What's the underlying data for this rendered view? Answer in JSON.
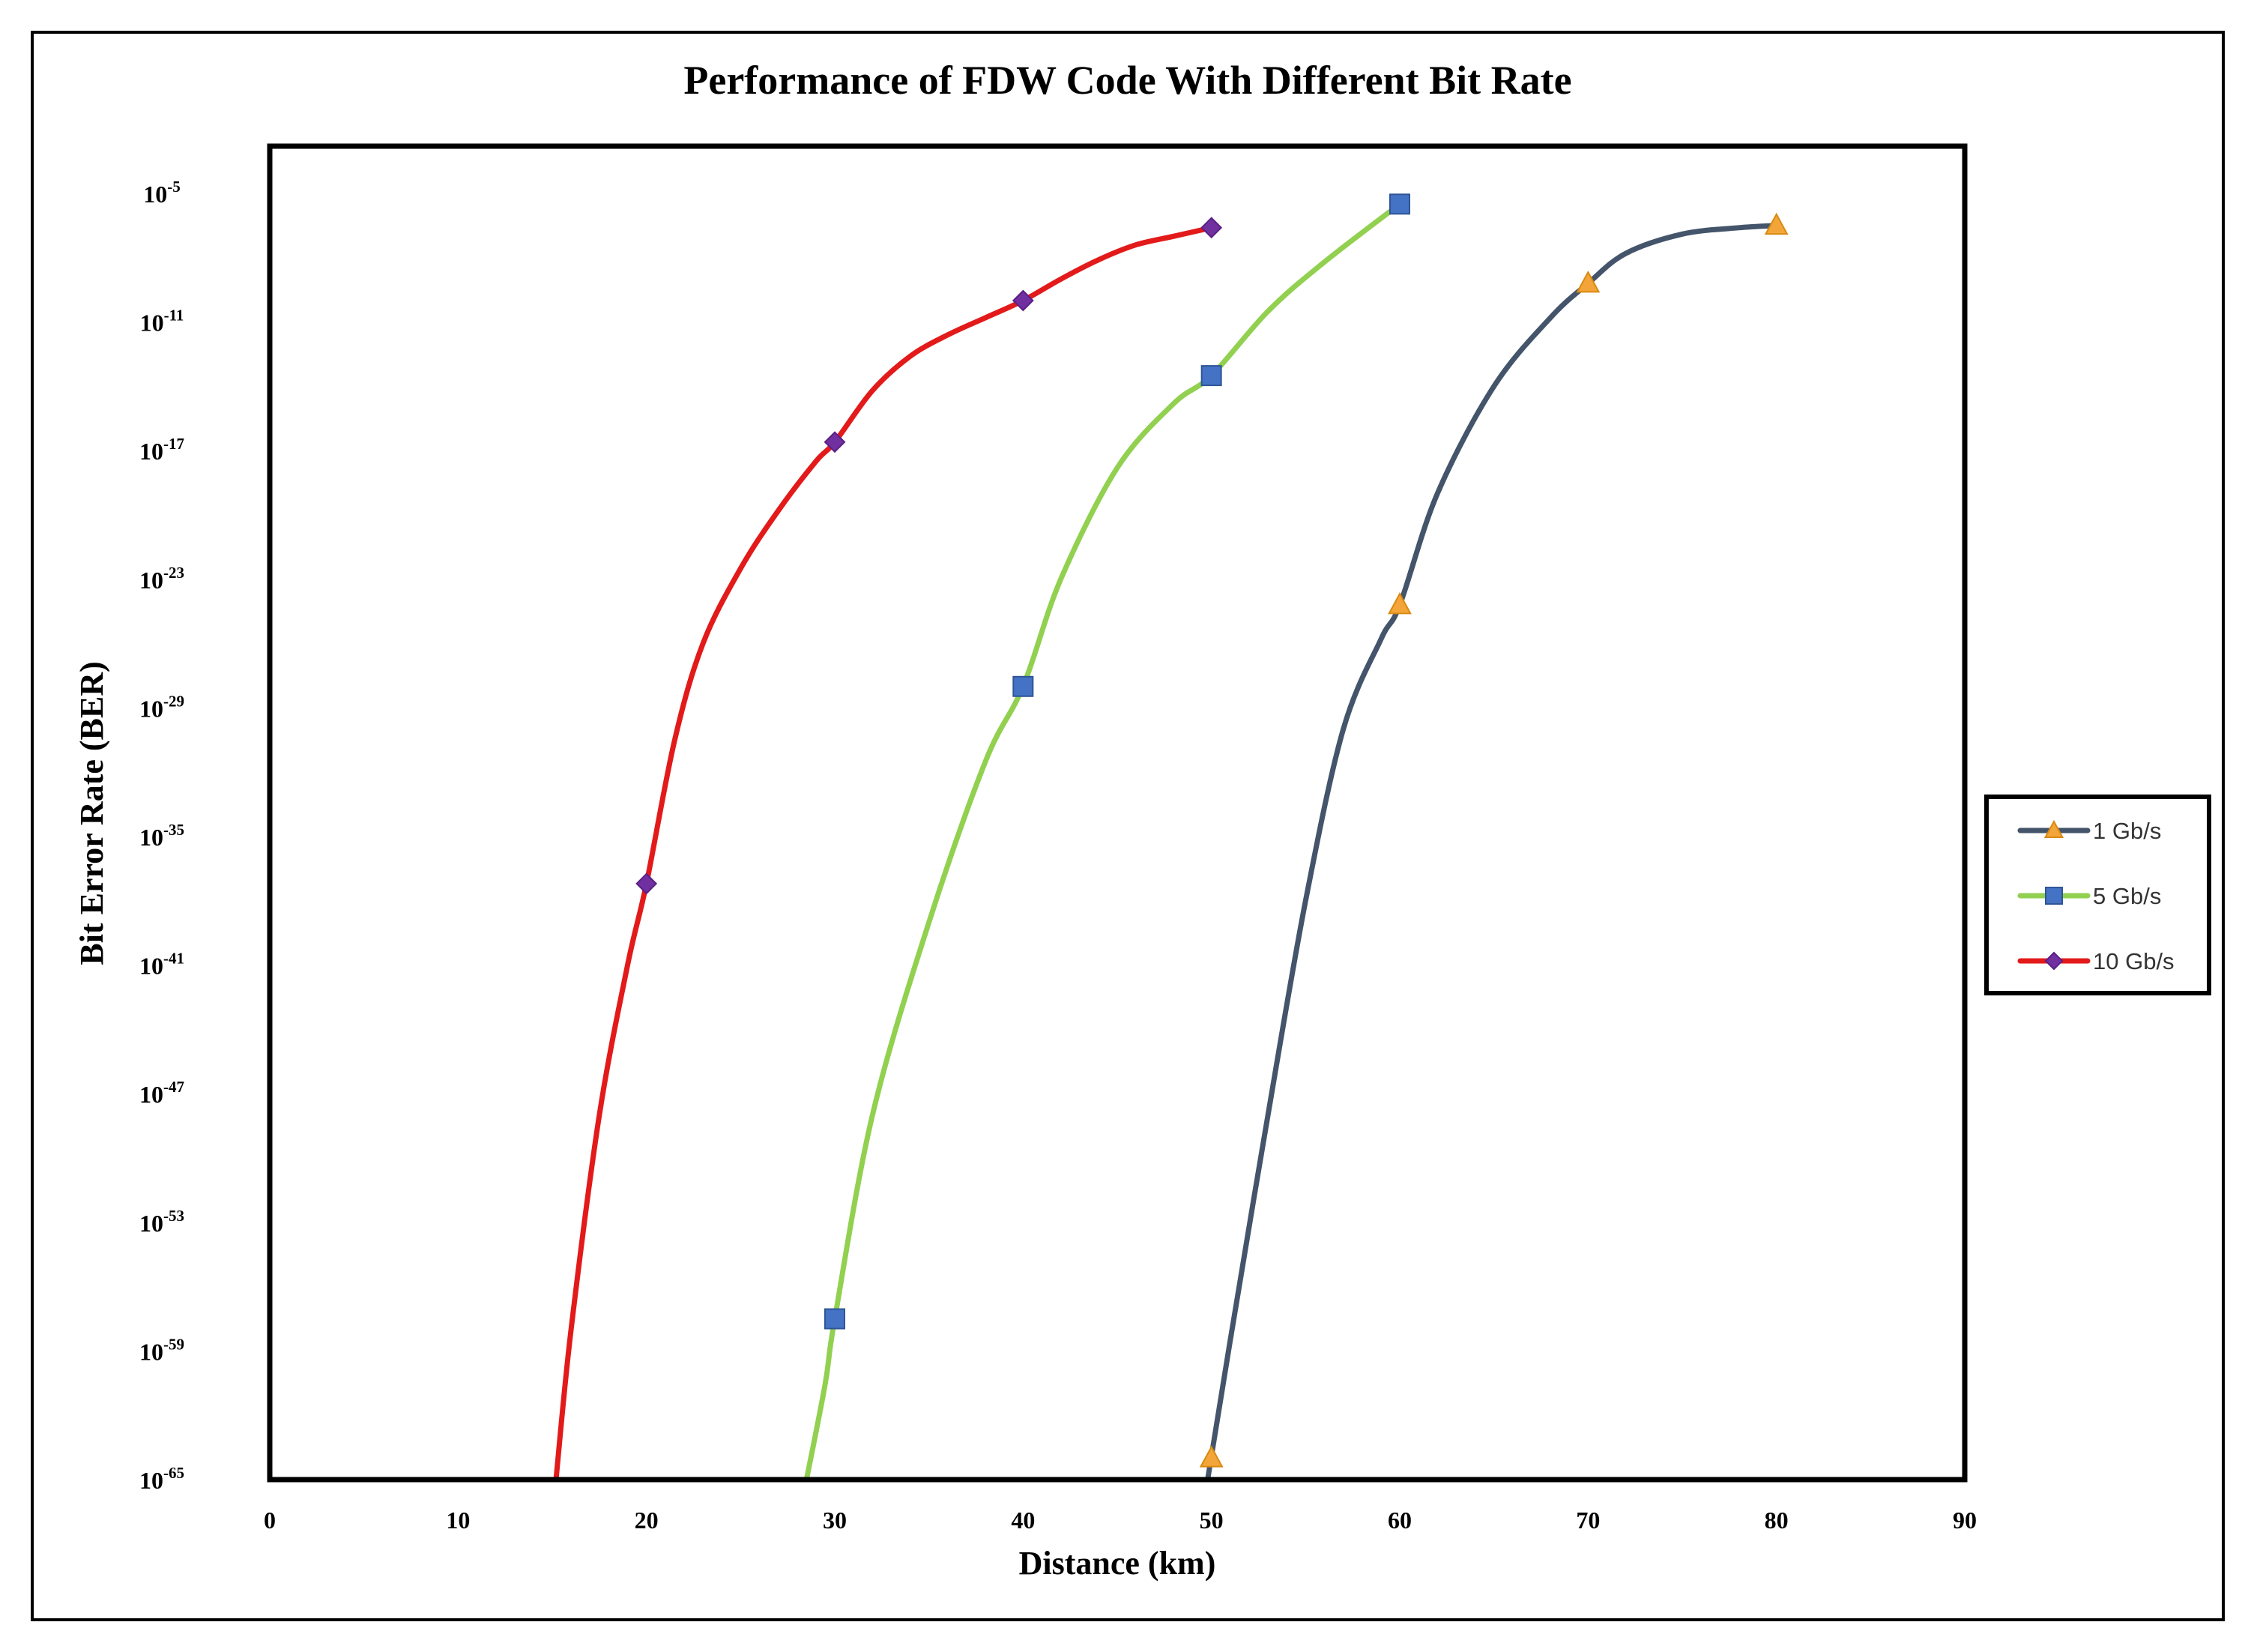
{
  "chart_data": {
    "type": "line",
    "title": "Performance of FDW Code With Different Bit Rate",
    "xlabel": "Distance (km)",
    "ylabel": "Bit Error Rate (BER)",
    "xlim": [
      0,
      90
    ],
    "x_ticks": [
      0,
      10,
      20,
      30,
      40,
      50,
      60,
      70,
      80,
      90
    ],
    "y_scale": "log10",
    "ylim_exponent": [
      -65,
      -5
    ],
    "y_ticks": [
      {
        "exp": -5,
        "base": "10",
        "sup": "-5"
      },
      {
        "exp": -11,
        "base": "10",
        "sup": "-11"
      },
      {
        "exp": -17,
        "base": "10",
        "sup": "-17"
      },
      {
        "exp": -23,
        "base": "10",
        "sup": "-23"
      },
      {
        "exp": -29,
        "base": "10",
        "sup": "-29"
      },
      {
        "exp": -35,
        "base": "10",
        "sup": "-35"
      },
      {
        "exp": -41,
        "base": "10",
        "sup": "-41"
      },
      {
        "exp": -47,
        "base": "10",
        "sup": "-47"
      },
      {
        "exp": -53,
        "base": "10",
        "sup": "-53"
      },
      {
        "exp": -59,
        "base": "10",
        "sup": "-59"
      },
      {
        "exp": -65,
        "base": "10",
        "sup": "-65"
      }
    ],
    "grid": false,
    "legend_position": "right",
    "series": [
      {
        "name": "1 Gb/s",
        "color": "#44546a",
        "marker": "triangle",
        "marker_fill": "#f4a53a",
        "marker_stroke": "#d98a10",
        "x": [
          50,
          60,
          70,
          80
        ],
        "log10_ber": [
          -64,
          -24.2,
          -9.2,
          -6.5
        ],
        "line_x": [
          49.8,
          50,
          51,
          53,
          55,
          57,
          59,
          60,
          62,
          65,
          68,
          70,
          72,
          75,
          78,
          80
        ],
        "line_log10_ber": [
          -65,
          -63.9,
          -58.5,
          -48,
          -38,
          -30,
          -25.8,
          -24.2,
          -19,
          -14,
          -10.8,
          -9.2,
          -7.8,
          -6.9,
          -6.6,
          -6.5
        ]
      },
      {
        "name": "5 Gb/s",
        "color": "#92d050",
        "marker": "square",
        "marker_fill": "#4472c4",
        "marker_stroke": "#2f5597",
        "x": [
          30,
          40,
          50,
          60
        ],
        "log10_ber": [
          -57.5,
          -28,
          -13.5,
          -5.5
        ],
        "line_x": [
          28.5,
          29.5,
          30,
          32,
          35,
          38,
          40,
          42,
          45,
          48,
          50,
          53,
          56,
          60
        ],
        "line_log10_ber": [
          -65,
          -60.5,
          -57.5,
          -48,
          -39,
          -31.5,
          -28,
          -23,
          -17.8,
          -14.8,
          -13.5,
          -10.5,
          -8.2,
          -5.5
        ]
      },
      {
        "name": "10 Gb/s",
        "color": "#e31a1a",
        "marker": "diamond",
        "marker_fill": "#7030a0",
        "marker_stroke": "#5a1f85",
        "x": [
          20,
          30,
          40,
          50
        ],
        "log10_ber": [
          -37.2,
          -16.6,
          -10,
          -6.6
        ],
        "line_x": [
          15.2,
          16,
          17.5,
          19,
          20,
          21.5,
          23,
          25,
          27,
          29,
          30,
          32,
          34,
          36,
          38,
          40,
          42,
          44,
          46,
          48,
          50
        ],
        "line_log10_ber": [
          -65,
          -58,
          -48,
          -41,
          -37.2,
          -30.5,
          -26,
          -22.5,
          -19.8,
          -17.5,
          -16.6,
          -14.2,
          -12.6,
          -11.6,
          -10.8,
          -10,
          -9,
          -8.1,
          -7.4,
          -7,
          -6.6
        ]
      }
    ]
  }
}
